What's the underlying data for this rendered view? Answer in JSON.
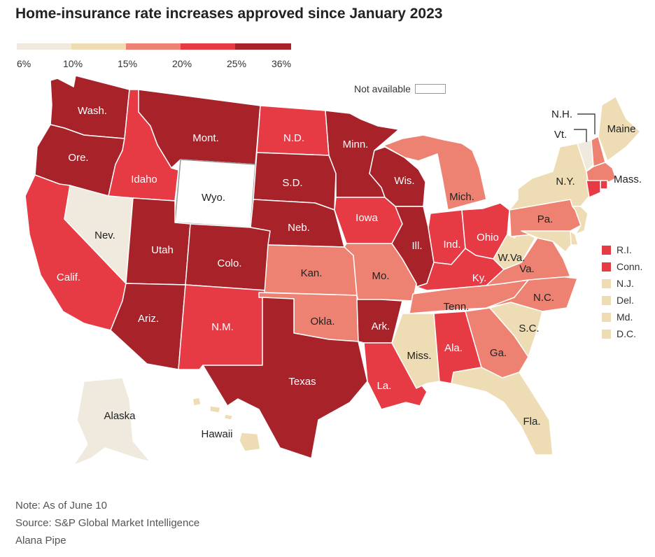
{
  "title": "Home-insurance rate increases approved since January 2023",
  "legend": {
    "ticks": [
      "6%",
      "10%",
      "15%",
      "20%",
      "25%",
      "36%"
    ],
    "bins": [
      {
        "color": "#efe9de"
      },
      {
        "color": "#eedcb4"
      },
      {
        "color": "#ee8272"
      },
      {
        "color": "#e63b45"
      },
      {
        "color": "#a8222a"
      }
    ],
    "na_label": "Not available"
  },
  "colors": {
    "bin0": "#efe9de",
    "bin1": "#eedcb4",
    "bin2": "#ee8272",
    "bin3": "#e63b45",
    "bin4": "#a8222a",
    "na": "#ffffff",
    "border": "#ffffff"
  },
  "states": {
    "wa": "Wash.",
    "or": "Ore.",
    "ca": "Calif.",
    "nv": "Nev.",
    "id": "Idaho",
    "mt": "Mont.",
    "wy": "Wyo.",
    "ut": "Utah",
    "az": "Ariz.",
    "co": "Colo.",
    "nm": "N.M.",
    "nd": "N.D.",
    "sd": "S.D.",
    "ne": "Neb.",
    "ks": "Kan.",
    "ok": "Okla.",
    "tx": "Texas",
    "mn": "Minn.",
    "ia": "Iowa",
    "mo": "Mo.",
    "ar": "Ark.",
    "la": "La.",
    "wi": "Wis.",
    "il": "Ill.",
    "mi": "Mich.",
    "in": "Ind.",
    "oh": "Ohio",
    "ky": "Ky.",
    "tn": "Tenn.",
    "ms": "Miss.",
    "al": "Ala.",
    "ga": "Ga.",
    "fl": "Fla.",
    "sc": "S.C.",
    "nc": "N.C.",
    "va": "Va.",
    "wv": "W.Va.",
    "pa": "Pa.",
    "ny": "N.Y.",
    "me": "Maine",
    "nh": "N.H.",
    "vt": "Vt.",
    "ma": "Mass.",
    "ak": "Alaska",
    "hi": "Hawaii"
  },
  "small_states": [
    {
      "label": "R.I.",
      "color": "#e63b45"
    },
    {
      "label": "Conn.",
      "color": "#e63b45"
    },
    {
      "label": "N.J.",
      "color": "#eedcb4"
    },
    {
      "label": "Del.",
      "color": "#eedcb4"
    },
    {
      "label": "Md.",
      "color": "#eedcb4"
    },
    {
      "label": "D.C.",
      "color": "#eedcb4"
    }
  ],
  "footnotes": {
    "note": "Note: As of June 10",
    "source": "Source: S&P Global Market Intelligence",
    "credit": "Alana Pipe"
  }
}
